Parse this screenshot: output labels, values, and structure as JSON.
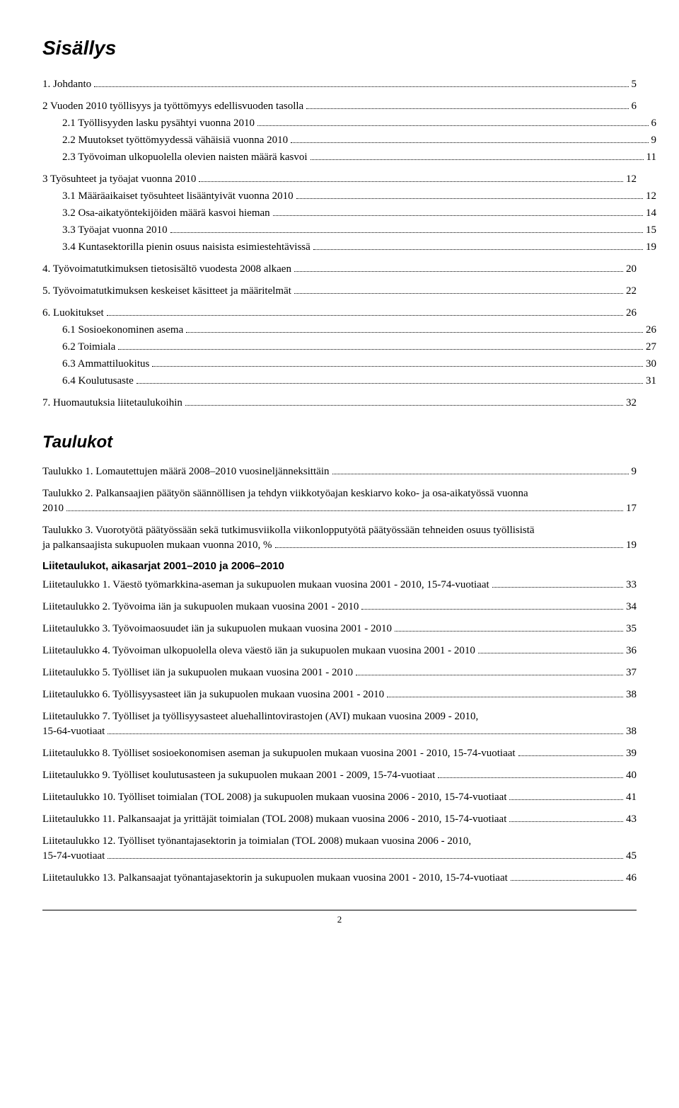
{
  "headings": {
    "sisallys": "Sisällys",
    "taulukot": "Taulukot",
    "liitetaulukot": "Liitetaulukot, aikasarjat 2001–2010 ja 2006–2010"
  },
  "toc": [
    {
      "label": "1. Johdanto",
      "page": "5",
      "indent": 0
    },
    {
      "label": "2 Vuoden 2010 työllisyys ja työttömyys edellisvuoden tasolla",
      "page": "6",
      "indent": 0
    },
    {
      "label": "2.1 Työllisyyden lasku pysähtyi vuonna 2010",
      "page": "6",
      "indent": 1
    },
    {
      "label": "2.2 Muutokset työttömyydessä vähäisiä vuonna 2010",
      "page": "9",
      "indent": 1
    },
    {
      "label": "2.3 Työvoiman ulkopuolella olevien naisten määrä kasvoi",
      "page": "11",
      "indent": 1
    },
    {
      "label": "3 Työsuhteet ja työajat vuonna 2010",
      "page": "12",
      "indent": 0
    },
    {
      "label": "3.1 Määräaikaiset työsuhteet lisääntyivät vuonna 2010",
      "page": "12",
      "indent": 1
    },
    {
      "label": "3.2 Osa-aikatyöntekijöiden määrä kasvoi hieman",
      "page": "14",
      "indent": 1
    },
    {
      "label": "3.3 Työajat vuonna 2010",
      "page": "15",
      "indent": 1
    },
    {
      "label": "3.4 Kuntasektorilla pienin osuus naisista esimiestehtävissä",
      "page": "19",
      "indent": 1
    },
    {
      "label": "4. Työvoimatutkimuksen tietosisältö vuodesta 2008 alkaen",
      "page": "20",
      "indent": 0
    },
    {
      "label": "5. Työvoimatutkimuksen keskeiset käsitteet ja määritelmät",
      "page": "22",
      "indent": 0
    },
    {
      "label": "6. Luokitukset",
      "page": "26",
      "indent": 0
    },
    {
      "label": "6.1 Sosioekonominen asema",
      "page": "26",
      "indent": 1
    },
    {
      "label": "6.2 Toimiala",
      "page": "27",
      "indent": 1
    },
    {
      "label": "6.3 Ammattiluokitus",
      "page": "30",
      "indent": 1
    },
    {
      "label": "6.4 Koulutusaste",
      "page": "31",
      "indent": 1
    },
    {
      "label": "7. Huomautuksia liitetaulukoihin",
      "page": "32",
      "indent": 0
    }
  ],
  "taulukot_list": [
    {
      "label": "Taulukko 1. Lomautettujen määrä 2008–2010 vuosineljänneksittäin",
      "page": "9"
    },
    {
      "first": "Taulukko 2. Palkansaajien päätyön säännöllisen ja tehdyn viikkotyöajan keskiarvo koko- ja osa-aikatyössä vuonna",
      "last": "2010",
      "page": "17"
    },
    {
      "first": "Taulukko 3. Vuorotyötä päätyössään sekä tutkimusviikolla viikonlopputyötä päätyössään tehneiden osuus työllisistä",
      "last": "ja palkansaajista sukupuolen mukaan vuonna 2010, %",
      "page": "19"
    }
  ],
  "liitetaulukot": [
    {
      "label": "Liitetaulukko 1. Väestö työmarkkina-aseman ja sukupuolen mukaan vuosina 2001 - 2010, 15-74-vuotiaat",
      "page": "33"
    },
    {
      "label": "Liitetaulukko 2. Työvoima iän ja sukupuolen mukaan vuosina 2001 - 2010",
      "page": "34"
    },
    {
      "label": "Liitetaulukko 3. Työvoimaosuudet iän ja sukupuolen mukaan vuosina 2001 - 2010",
      "page": "35"
    },
    {
      "label": "Liitetaulukko 4. Työvoiman ulkopuolella oleva väestö iän ja sukupuolen mukaan vuosina 2001 - 2010",
      "page": "36"
    },
    {
      "label": "Liitetaulukko 5. Työlliset iän ja sukupuolen mukaan vuosina 2001 - 2010",
      "page": "37"
    },
    {
      "label": "Liitetaulukko 6. Työllisyysasteet iän ja sukupuolen mukaan vuosina 2001 - 2010",
      "page": "38"
    },
    {
      "first": "Liitetaulukko 7. Työlliset ja työllisyysasteet aluehallintovirastojen (AVI) mukaan vuosina 2009 - 2010,",
      "last": "15-64-vuotiaat",
      "page": "38"
    },
    {
      "label": "Liitetaulukko 8. Työlliset sosioekonomisen aseman ja sukupuolen mukaan vuosina 2001 - 2010, 15-74-vuotiaat",
      "page": "39",
      "tight": true
    },
    {
      "label": "Liitetaulukko 9. Työlliset koulutusasteen ja sukupuolen mukaan 2001 - 2009, 15-74-vuotiaat",
      "page": "40"
    },
    {
      "label": "Liitetaulukko 10. Työlliset toimialan (TOL 2008) ja sukupuolen mukaan vuosina 2006 - 2010, 15-74-vuotiaat",
      "page": "41"
    },
    {
      "label": "Liitetaulukko 11. Palkansaajat ja yrittäjät toimialan (TOL 2008) mukaan vuosina 2006 - 2010, 15-74-vuotiaat",
      "page": "43"
    },
    {
      "first": "Liitetaulukko 12. Työlliset työnantajasektorin ja toimialan (TOL 2008) mukaan vuosina 2006 - 2010,",
      "last": "15-74-vuotiaat",
      "page": "45"
    },
    {
      "label": "Liitetaulukko 13. Palkansaajat työnantajasektorin ja sukupuolen mukaan vuosina 2001 - 2010, 15-74-vuotiaat",
      "page": "46"
    }
  ],
  "footer_page": "2"
}
